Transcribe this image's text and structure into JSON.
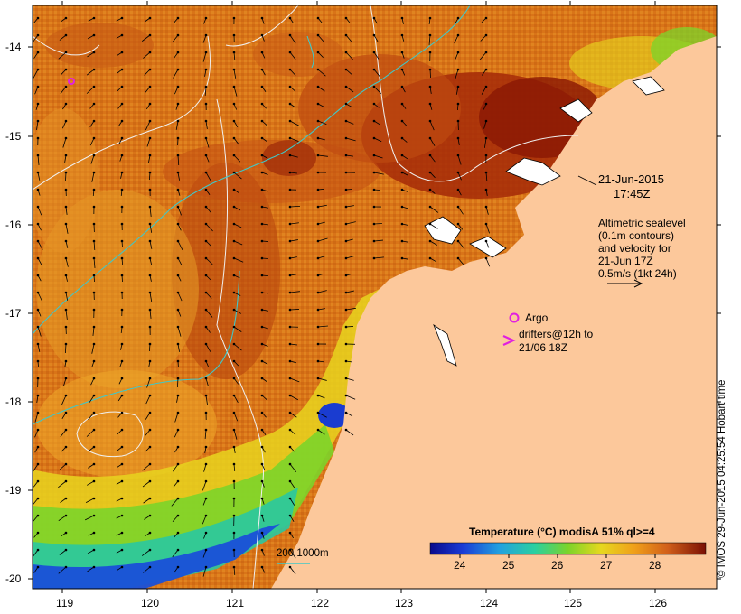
{
  "map": {
    "lon_ticks": [
      "119",
      "120",
      "121",
      "122",
      "123",
      "124",
      "125",
      "126"
    ],
    "lat_ticks": [
      "-14",
      "-15",
      "-16",
      "-17",
      "-18",
      "-19",
      "-20"
    ],
    "lon_range": [
      118.6,
      126.7
    ],
    "lat_range": [
      -13.6,
      -20.1
    ]
  },
  "annotations": {
    "date": "21-Jun-2015",
    "time": "17:45Z",
    "altimetry_lines": [
      "Altimetric sealevel",
      "(0.1m contours)",
      "and velocity for",
      "21-Jun 17Z",
      "0.5m/s (1kt 24h)"
    ],
    "argo_label": "Argo",
    "drifters_line1": "drifters@12h to",
    "drifters_line2": "21/06 18Z",
    "depth_label": "200  1000m"
  },
  "colorbar": {
    "title": "Temperature (°C) modisA 51% ql>=4",
    "ticks": [
      "24",
      "25",
      "26",
      "27",
      "28"
    ],
    "range": [
      23.4,
      28.6
    ]
  },
  "credit": "© IMOS 29-Jun-2015 04:25:54 Hobart time",
  "colors": {
    "land": "#fcc89b",
    "warm": "#c94f16",
    "hot": "#8e1a05",
    "mid": "#e58a1e",
    "cool": "#7fd12a",
    "cold": "#1a2bb0",
    "contour_200": "#40c8c8",
    "argo": "#e020e0"
  }
}
